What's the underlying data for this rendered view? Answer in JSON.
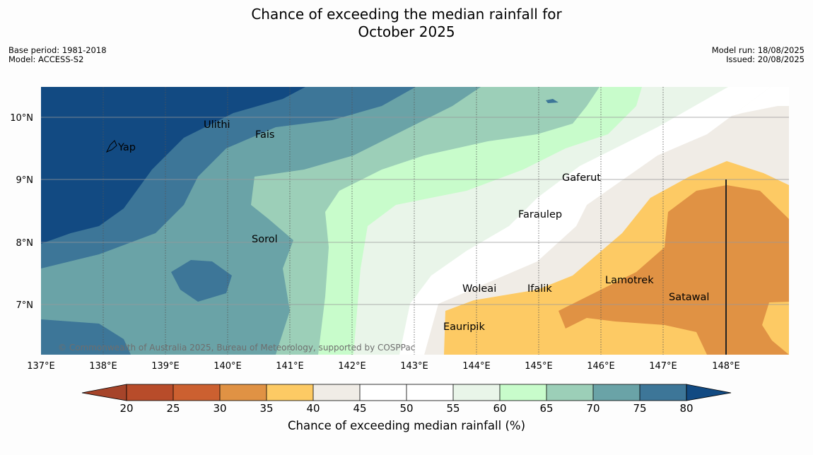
{
  "header": {
    "title_line1": "Chance of exceeding the median rainfall for",
    "title_line2": "October 2025",
    "base_period": "Base period: 1981-2018",
    "model": "Model: ACCESS-S2",
    "model_run": "Model run: 18/08/2025",
    "issued": "Issued: 20/08/2025"
  },
  "map": {
    "lon_ticks": [
      "137°E",
      "138°E",
      "139°E",
      "140°E",
      "141°E",
      "142°E",
      "143°E",
      "144°E",
      "145°E",
      "146°E",
      "147°E",
      "148°E"
    ],
    "lat_ticks": [
      "10°N",
      "9°N",
      "8°N",
      "7°N"
    ],
    "places": [
      {
        "name": "Yap",
        "lon": 138.2,
        "lat": 9.5
      },
      {
        "name": "Ulithi",
        "lon": 139.6,
        "lat": 9.9
      },
      {
        "name": "Fais",
        "lon": 140.4,
        "lat": 9.75
      },
      {
        "name": "Gaferut",
        "lon": 145.35,
        "lat": 9.0
      },
      {
        "name": "Faraulep",
        "lon": 144.65,
        "lat": 8.42
      },
      {
        "name": "Sorol",
        "lon": 140.35,
        "lat": 8.05
      },
      {
        "name": "Woleai",
        "lon": 143.75,
        "lat": 7.27
      },
      {
        "name": "Ifalik",
        "lon": 144.75,
        "lat": 7.27
      },
      {
        "name": "Lamotrek",
        "lon": 146.05,
        "lat": 7.4
      },
      {
        "name": "Satawal",
        "lon": 147.05,
        "lat": 7.13
      },
      {
        "name": "Eauripik",
        "lon": 143.45,
        "lat": 6.65
      }
    ],
    "copyright": "© Commonwealth of Australia 2025, Bureau of Meteorology, supported by COSPPac"
  },
  "legend": {
    "title": "Chance of exceeding median rainfall (%)",
    "tick_labels": [
      "20",
      "25",
      "30",
      "35",
      "40",
      "45",
      "50",
      "55",
      "60",
      "65",
      "70",
      "75",
      "80"
    ],
    "colors": [
      "#a6442a",
      "#b84c2a",
      "#cc6030",
      "#e09244",
      "#fdca64",
      "#f0ece6",
      "#ffffff",
      "#ffffff",
      "#e9f5e9",
      "#c8fccb",
      "#9ccfb8",
      "#6aa3a7",
      "#3d7698",
      "#124a82"
    ]
  },
  "colors": {
    "c80plus": "#124a82",
    "c75_80": "#3d7698",
    "c70_75": "#6aa3a7",
    "c65_70": "#9ccfb8",
    "c60_65": "#c8fccb",
    "c55_60": "#e9f5e9",
    "c45_50": "#f0ece6",
    "c35_40": "#fdca64",
    "c30_35": "#e09244"
  }
}
